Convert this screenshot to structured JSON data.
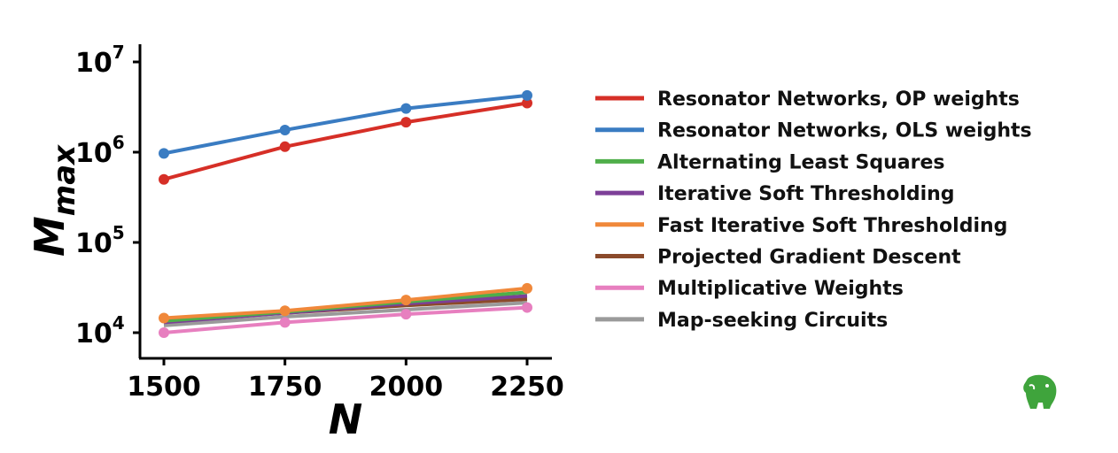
{
  "chart_data": {
    "type": "line",
    "x": [
      1500,
      1750,
      2000,
      2250
    ],
    "xticks": [
      "1500",
      "1750",
      "2000",
      "2250"
    ],
    "xlabel": "N",
    "ylabel": {
      "base": "M",
      "sub": "max"
    },
    "yscale": "log",
    "ylim": [
      5000,
      12000000
    ],
    "yticks": [
      {
        "value": 10000,
        "base": "10",
        "exp": "4"
      },
      {
        "value": 100000,
        "base": "10",
        "exp": "5"
      },
      {
        "value": 1000000,
        "base": "10",
        "exp": "6"
      },
      {
        "value": 10000000,
        "base": "10",
        "exp": "7"
      }
    ],
    "grid": false,
    "legend_position": "right",
    "series": [
      {
        "name": "Resonator Networks, OP weights",
        "color": "#d62f27",
        "markers": true,
        "values": [
          500000,
          1150000,
          2150000,
          3500000
        ]
      },
      {
        "name": "Resonator Networks, OLS weights",
        "color": "#3a7cc2",
        "markers": true,
        "values": [
          970000,
          1760000,
          3050000,
          4250000
        ]
      },
      {
        "name": "Alternating Least Squares",
        "color": "#4fae4a",
        "markers": false,
        "values": [
          13500,
          17000,
          22000,
          28000
        ]
      },
      {
        "name": "Iterative Soft Thresholding",
        "color": "#7d3f98",
        "markers": false,
        "values": [
          13000,
          16500,
          21000,
          25500
        ]
      },
      {
        "name": "Fast Iterative Soft Thresholding",
        "color": "#f0883a",
        "markers": true,
        "values": [
          14500,
          17500,
          23000,
          31000
        ]
      },
      {
        "name": "Projected Gradient Descent",
        "color": "#8b4a2b",
        "markers": false,
        "values": [
          13500,
          16500,
          20000,
          23500
        ]
      },
      {
        "name": "Multiplicative Weights",
        "color": "#e77fbf",
        "markers": true,
        "values": [
          10000,
          13000,
          16000,
          19000
        ]
      },
      {
        "name": "Map-seeking Circuits",
        "color": "#9a9a9a",
        "markers": false,
        "values": [
          12000,
          15000,
          18000,
          21500
        ]
      }
    ]
  },
  "brand": {
    "icon": "evernote-elephant-icon",
    "color": "#3fa43c"
  }
}
